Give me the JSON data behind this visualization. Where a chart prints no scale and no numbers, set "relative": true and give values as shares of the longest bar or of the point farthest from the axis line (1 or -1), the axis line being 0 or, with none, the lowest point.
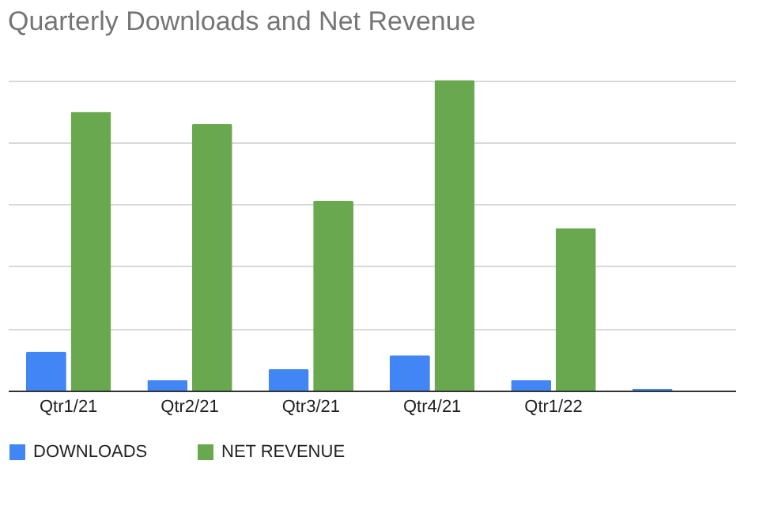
{
  "chart_data": {
    "type": "bar",
    "title": "Quarterly Downloads and Net Revenue",
    "categories": [
      "Qtr1/21",
      "Qtr2/21",
      "Qtr3/21",
      "Qtr4/21",
      "Qtr1/22",
      null
    ],
    "series": [
      {
        "name": "DOWNLOADS",
        "color": "#4285f4",
        "values": [
          0.125,
          0.034,
          0.069,
          0.114,
          0.034,
          0.006
        ]
      },
      {
        "name": "NET REVENUE",
        "color": "#6aa84f",
        "values": [
          0.897,
          0.858,
          0.611,
          1,
          0.523,
          null
        ]
      }
    ],
    "relative": true,
    "grid": "y",
    "legend": "bottom"
  }
}
